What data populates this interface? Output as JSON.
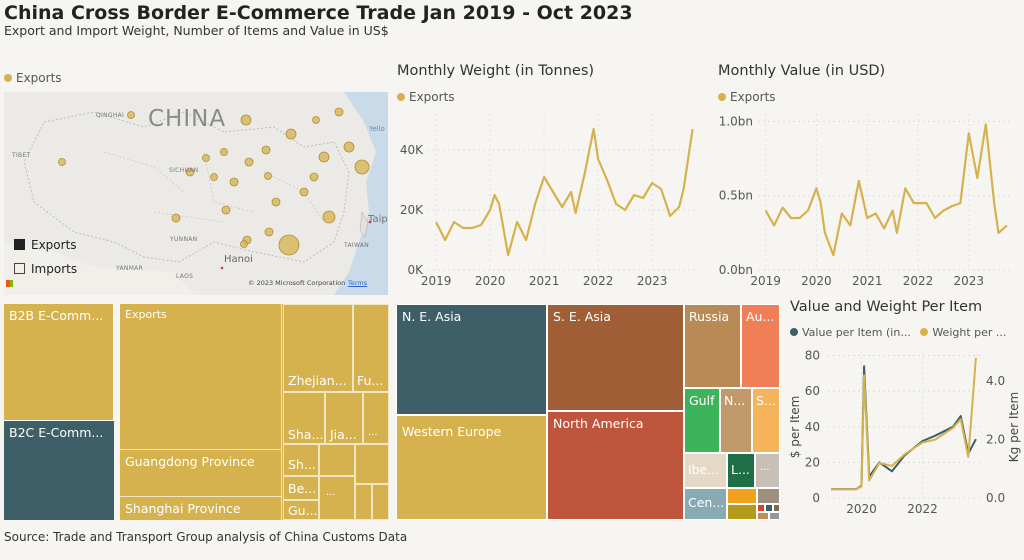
{
  "header": {
    "title": "China Cross Border E-Commerce Trade Jan 2019 - Oct 2023",
    "subtitle": "Export and Import Weight, Number of Items and Value in US$"
  },
  "source": "Source: Trade and Transport Group analysis of China Customs Data",
  "colors": {
    "gold": "#d6b24e",
    "teal": "#3e5f67",
    "background": "#f6f5f2"
  },
  "map": {
    "legend_label": "Exports",
    "country_label": "CHINA",
    "place_labels": [
      "QINGHAI",
      "TIBET",
      "SICHUAN",
      "YUNNAN",
      "LAOS",
      "YANMAR",
      "TAIWAN",
      "Taipe",
      "Hanoi",
      "Yello"
    ],
    "selector": {
      "exports": "Exports",
      "imports": "Imports"
    },
    "copyright": "© 2023 Microsoft Corporation",
    "terms": "Terms"
  },
  "weight_chart": {
    "title": "Monthly Weight (in Tonnes)",
    "legend": "Exports"
  },
  "value_chart": {
    "title": "Monthly Value (in USD)",
    "legend": "Exports"
  },
  "per_item_chart": {
    "title": "Value and Weight Per Item",
    "legend_value": "Value per Item (in...",
    "legend_weight": "Weight per ...",
    "left_axis_label": "$ per Item",
    "right_axis_label": "Kg per Item"
  },
  "treemap_left": {
    "b2b": "B2B E-Comm...",
    "b2c": "B2C E-Comm..."
  },
  "treemap_mid": {
    "exports": "Exports",
    "guangdong": "Guangdong Province",
    "shanghai": "Shanghai Province",
    "zhejiang": "Zhejian...",
    "fu": "Fu...",
    "sha": "Sha...",
    "jia": "Jia...",
    "dots": "...",
    "sh": "Sh...",
    "be": "Be...",
    "gu": "Gu..."
  },
  "treemap_right": {
    "ne_asia": "N. E. Asia",
    "se_asia": "S. E. Asia",
    "russia": "Russia",
    "au": "Au...",
    "western_europe": "Western Europe",
    "north_america": "North America",
    "gulf": "Gulf",
    "n": "N...",
    "s": "S...",
    "ibe": "Ibe...",
    "l": "L...",
    "cen": "Cen...",
    "dots": "..."
  },
  "chart_data": [
    {
      "type": "line",
      "title": "Monthly Weight (in Tonnes)",
      "series": [
        {
          "name": "Exports",
          "color": "#d6b24e"
        }
      ],
      "x_ticks": [
        "2019",
        "2020",
        "2021",
        "2022",
        "2023"
      ],
      "y_ticks": [
        "0K",
        "20K",
        "40K"
      ],
      "ylim": [
        0,
        52000
      ],
      "x": [
        "2019-01",
        "2019-03",
        "2019-05",
        "2019-07",
        "2019-09",
        "2019-11",
        "2020-01",
        "2020-02",
        "2020-03",
        "2020-05",
        "2020-07",
        "2020-09",
        "2020-11",
        "2021-01",
        "2021-03",
        "2021-05",
        "2021-07",
        "2021-08",
        "2021-10",
        "2021-12",
        "2022-01",
        "2022-03",
        "2022-05",
        "2022-07",
        "2022-09",
        "2022-11",
        "2023-01",
        "2023-03",
        "2023-05",
        "2023-07",
        "2023-08",
        "2023-10"
      ],
      "values": [
        16000,
        10000,
        16000,
        14000,
        14000,
        15000,
        20000,
        25000,
        22000,
        5000,
        16000,
        10000,
        22000,
        31000,
        26000,
        21000,
        26000,
        19000,
        32000,
        47000,
        37000,
        30000,
        22000,
        20000,
        25000,
        24000,
        29000,
        27000,
        18000,
        21000,
        27000,
        47000
      ]
    },
    {
      "type": "line",
      "title": "Monthly Value (in USD)",
      "series": [
        {
          "name": "Exports",
          "color": "#d6b24e"
        }
      ],
      "x_ticks": [
        "2019",
        "2020",
        "2021",
        "2022",
        "2023"
      ],
      "y_ticks": [
        "0.0bn",
        "0.5bn",
        "1.0bn"
      ],
      "ylim": [
        0,
        1.05
      ],
      "x": [
        "2019-01",
        "2019-03",
        "2019-05",
        "2019-07",
        "2019-09",
        "2019-11",
        "2020-01",
        "2020-02",
        "2020-03",
        "2020-05",
        "2020-07",
        "2020-09",
        "2020-11",
        "2021-01",
        "2021-03",
        "2021-05",
        "2021-07",
        "2021-08",
        "2021-10",
        "2021-12",
        "2022-01",
        "2022-03",
        "2022-05",
        "2022-07",
        "2022-09",
        "2022-11",
        "2023-01",
        "2023-03",
        "2023-05",
        "2023-07",
        "2023-08",
        "2023-10"
      ],
      "values": [
        0.4,
        0.3,
        0.42,
        0.35,
        0.35,
        0.4,
        0.55,
        0.45,
        0.25,
        0.1,
        0.38,
        0.3,
        0.6,
        0.35,
        0.38,
        0.28,
        0.4,
        0.25,
        0.55,
        0.45,
        0.45,
        0.45,
        0.35,
        0.4,
        0.43,
        0.45,
        0.92,
        0.62,
        0.98,
        0.45,
        0.25,
        0.3
      ]
    },
    {
      "type": "line",
      "title": "Value and Weight Per Item",
      "x_ticks": [
        "2020",
        "2022"
      ],
      "y_left_ticks": [
        "0",
        "20",
        "40",
        "60",
        "80"
      ],
      "y_right_ticks": [
        "0.0",
        "2.0",
        "4.0"
      ],
      "x": [
        "2019-01",
        "2019-06",
        "2019-11",
        "2020-01",
        "2020-02",
        "2020-04",
        "2020-08",
        "2021-01",
        "2021-06",
        "2022-01",
        "2022-06",
        "2023-01",
        "2023-04",
        "2023-07",
        "2023-10"
      ],
      "series": [
        {
          "name": "Value per Item (in USD)",
          "axis": "left",
          "color": "#3e5f67",
          "values": [
            5,
            5,
            5,
            7,
            74,
            12,
            20,
            15,
            24,
            32,
            35,
            40,
            46,
            25,
            33
          ]
        },
        {
          "name": "Weight per Item",
          "axis": "right",
          "color": "#d6b24e",
          "values": [
            0.3,
            0.3,
            0.3,
            0.4,
            4.2,
            0.6,
            1.2,
            1.1,
            1.5,
            1.9,
            2.0,
            2.4,
            2.7,
            1.4,
            4.8
          ]
        }
      ]
    }
  ]
}
